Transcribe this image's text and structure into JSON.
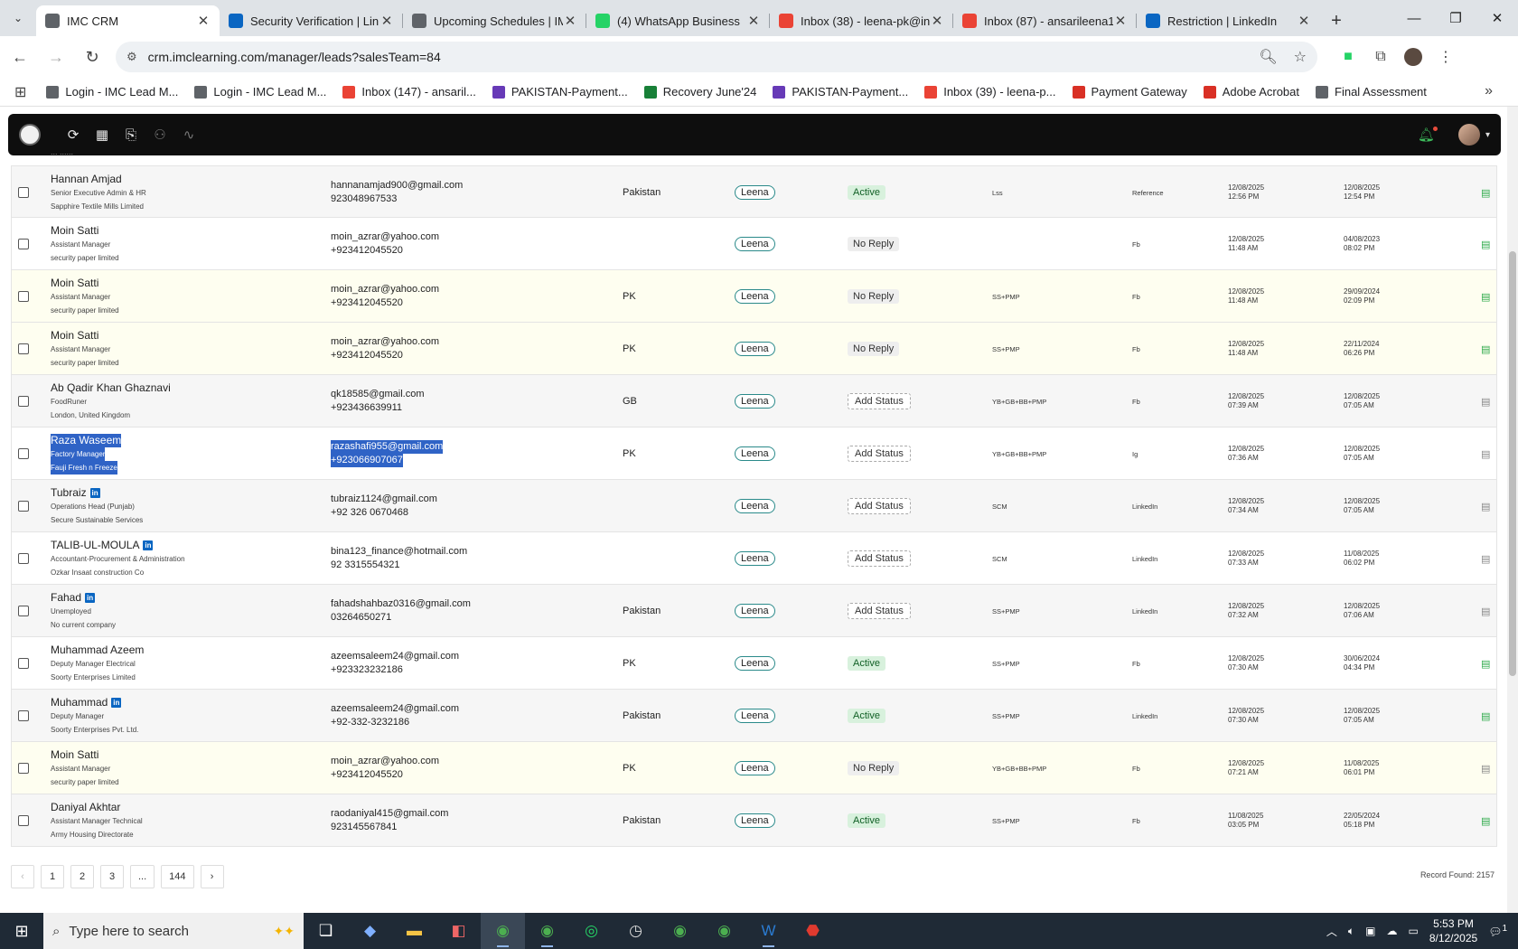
{
  "browser": {
    "tabs": [
      {
        "title": "IMC CRM",
        "icon": "imc-icon",
        "color": "#5f6368",
        "active": true
      },
      {
        "title": "Security Verification | Lin",
        "icon": "linkedin-icon",
        "color": "#0a66c2"
      },
      {
        "title": "Upcoming Schedules | IM",
        "icon": "imc-icon",
        "color": "#5f6368"
      },
      {
        "title": "(4) WhatsApp Business",
        "icon": "whatsapp-icon",
        "color": "#25d366"
      },
      {
        "title": "Inbox (38) - leena-pk@in",
        "icon": "gmail-icon",
        "color": "#ea4335"
      },
      {
        "title": "Inbox (87) - ansarileena1",
        "icon": "gmail-icon",
        "color": "#ea4335"
      },
      {
        "title": "Restriction | LinkedIn",
        "icon": "linkedin-icon",
        "color": "#0a66c2"
      }
    ],
    "url": "crm.imclearning.com/manager/leads?salesTeam=84",
    "bookmarks": [
      {
        "label": "Login - IMC Lead M...",
        "icon": "imc-icon",
        "color": "#5f6368"
      },
      {
        "label": "Login - IMC Lead M...",
        "icon": "imc-icon",
        "color": "#5f6368"
      },
      {
        "label": "Inbox (147) - ansaril...",
        "icon": "gmail-icon",
        "color": "#ea4335"
      },
      {
        "label": "PAKISTAN-Payment...",
        "icon": "forms-icon",
        "color": "#673ab7"
      },
      {
        "label": "Recovery June'24",
        "icon": "sheets-icon",
        "color": "#188038"
      },
      {
        "label": "PAKISTAN-Payment...",
        "icon": "forms-icon",
        "color": "#673ab7"
      },
      {
        "label": "Inbox (39) - leena-p...",
        "icon": "gmail-icon",
        "color": "#ea4335"
      },
      {
        "label": "Payment Gateway",
        "icon": "gateway-icon",
        "color": "#d93025"
      },
      {
        "label": "Adobe Acrobat",
        "icon": "acrobat-icon",
        "color": "#d93025"
      },
      {
        "label": "Final Assessment",
        "icon": "imc-icon",
        "color": "#5f6368"
      }
    ]
  },
  "clipped_text": "... ......",
  "leads": [
    {
      "name": "Hannan Amjad",
      "linkedin": false,
      "title": "Senior Executive Admin & HR",
      "company": "Sapphire Textile Mills Limited",
      "email": "hannanamjad900@gmail.com",
      "phone": "923048967533",
      "country": "Pakistan",
      "owner": "Leena",
      "status": "Active",
      "course": "Lss",
      "source": "Reference",
      "date1": "12/08/2025",
      "time1": "12:56 PM",
      "date2": "12/08/2025",
      "time2": "12:54 PM",
      "bg": "grey",
      "doc_active": true
    },
    {
      "name": "Moin Satti",
      "linkedin": false,
      "title": "Assistant Manager",
      "company": "security paper limited",
      "email": "moin_azrar@yahoo.com",
      "phone": "+923412045520",
      "country": "",
      "owner": "Leena",
      "status": "No Reply",
      "course": "",
      "source": "Fb",
      "date1": "12/08/2025",
      "time1": "11:48 AM",
      "date2": "04/08/2023",
      "time2": "08:02 PM",
      "bg": "white",
      "doc_active": true
    },
    {
      "name": "Moin Satti",
      "linkedin": false,
      "title": "Assistant Manager",
      "company": "security paper limited",
      "email": "moin_azrar@yahoo.com",
      "phone": "+923412045520",
      "country": "PK",
      "owner": "Leena",
      "status": "No Reply",
      "course": "SS+PMP",
      "source": "Fb",
      "date1": "12/08/2025",
      "time1": "11:48 AM",
      "date2": "29/09/2024",
      "time2": "02:09 PM",
      "bg": "yellow",
      "doc_active": true
    },
    {
      "name": "Moin Satti",
      "linkedin": false,
      "title": "Assistant Manager",
      "company": "security paper limited",
      "email": "moin_azrar@yahoo.com",
      "phone": "+923412045520",
      "country": "PK",
      "owner": "Leena",
      "status": "No Reply",
      "course": "SS+PMP",
      "source": "Fb",
      "date1": "12/08/2025",
      "time1": "11:48 AM",
      "date2": "22/11/2024",
      "time2": "06:26 PM",
      "bg": "yellow",
      "doc_active": true
    },
    {
      "name": "Ab Qadir Khan Ghaznavi",
      "linkedin": false,
      "title": "FoodRuner",
      "company": "London, United Kingdom",
      "email": "qk18585@gmail.com",
      "phone": "+923436639911",
      "country": "GB",
      "owner": "Leena",
      "status": "Add Status",
      "course": "YB+GB+BB+PMP",
      "source": "Fb",
      "date1": "12/08/2025",
      "time1": "07:39 AM",
      "date2": "12/08/2025",
      "time2": "07:05 AM",
      "bg": "grey",
      "doc_active": false
    },
    {
      "name": "Raza Waseem",
      "linkedin": false,
      "title": "Factory Manager",
      "company": "Fauji Fresh n Freeze",
      "email": "razashafi955@gmail.com",
      "phone": "+923066907067",
      "country": "PK",
      "owner": "Leena",
      "status": "Add Status",
      "course": "YB+GB+BB+PMP",
      "source": "Ig",
      "date1": "12/08/2025",
      "time1": "07:36 AM",
      "date2": "12/08/2025",
      "time2": "07:05 AM",
      "bg": "white",
      "doc_active": false,
      "selected": true
    },
    {
      "name": "Tubraiz",
      "linkedin": true,
      "title": "Operations Head (Punjab)",
      "company": "Secure Sustainable Services",
      "email": "tubraiz1124@gmail.com",
      "phone": "+92 326 0670468",
      "country": "",
      "owner": "Leena",
      "status": "Add Status",
      "course": "SCM",
      "source": "LinkedIn",
      "date1": "12/08/2025",
      "time1": "07:34 AM",
      "date2": "12/08/2025",
      "time2": "07:05 AM",
      "bg": "grey",
      "doc_active": false
    },
    {
      "name": "TALIB-UL-MOULA",
      "linkedin": true,
      "title": "Accountant-Procurement & Administration",
      "company": "Ozkar Insaat construction Co",
      "email": "bina123_finance@hotmail.com",
      "phone": "92 3315554321",
      "country": "",
      "owner": "Leena",
      "status": "Add Status",
      "course": "SCM",
      "source": "LinkedIn",
      "date1": "12/08/2025",
      "time1": "07:33 AM",
      "date2": "11/08/2025",
      "time2": "06:02 PM",
      "bg": "white",
      "doc_active": false
    },
    {
      "name": "Fahad",
      "linkedin": true,
      "title": "Unemployed",
      "company": "No current company",
      "email": "fahadshahbaz0316@gmail.com",
      "phone": "03264650271",
      "country": "Pakistan",
      "owner": "Leena",
      "status": "Add Status",
      "course": "SS+PMP",
      "source": "LinkedIn",
      "date1": "12/08/2025",
      "time1": "07:32 AM",
      "date2": "12/08/2025",
      "time2": "07:06 AM",
      "bg": "grey",
      "doc_active": false
    },
    {
      "name": "Muhammad Azeem",
      "linkedin": false,
      "title": "Deputy Manager Electrical",
      "company": "Soorty Enterprises Limited",
      "email": "azeemsaleem24@gmail.com",
      "phone": "+923323232186",
      "country": "PK",
      "owner": "Leena",
      "status": "Active",
      "course": "SS+PMP",
      "source": "Fb",
      "date1": "12/08/2025",
      "time1": "07:30 AM",
      "date2": "30/06/2024",
      "time2": "04:34 PM",
      "bg": "white",
      "doc_active": true
    },
    {
      "name": "Muhammad",
      "linkedin": true,
      "title": "Deputy Manager",
      "company": "Soorty Enterprises Pvt. Ltd.",
      "email": "azeemsaleem24@gmail.com",
      "phone": "+92-332-3232186",
      "country": "Pakistan",
      "owner": "Leena",
      "status": "Active",
      "course": "SS+PMP",
      "source": "LinkedIn",
      "date1": "12/08/2025",
      "time1": "07:30 AM",
      "date2": "12/08/2025",
      "time2": "07:05 AM",
      "bg": "grey",
      "doc_active": true
    },
    {
      "name": "Moin Satti",
      "linkedin": false,
      "title": "Assistant Manager",
      "company": "security paper limited",
      "email": "moin_azrar@yahoo.com",
      "phone": "+923412045520",
      "country": "PK",
      "owner": "Leena",
      "status": "No Reply",
      "course": "YB+GB+BB+PMP",
      "source": "Fb",
      "date1": "12/08/2025",
      "time1": "07:21 AM",
      "date2": "11/08/2025",
      "time2": "06:01 PM",
      "bg": "yellow",
      "doc_active": false
    },
    {
      "name": "Daniyal Akhtar",
      "linkedin": false,
      "title": "Assistant Manager Technical",
      "company": "Army Housing Directorate",
      "email": "raodaniyal415@gmail.com",
      "phone": "923145567841",
      "country": "Pakistan",
      "owner": "Leena",
      "status": "Active",
      "course": "SS+PMP",
      "source": "Fb",
      "date1": "11/08/2025",
      "time1": "03:05 PM",
      "date2": "22/05/2024",
      "time2": "05:18 PM",
      "bg": "grey",
      "doc_active": true
    }
  ],
  "pagination": {
    "pages": [
      "1",
      "2",
      "3",
      "...",
      "144"
    ],
    "prev": "‹",
    "next": "›"
  },
  "record_found": "Record Found: 2157",
  "taskbar": {
    "search_placeholder": "Type here to search",
    "time": "5:53 PM",
    "date": "8/12/2025",
    "notification_count": "1"
  }
}
